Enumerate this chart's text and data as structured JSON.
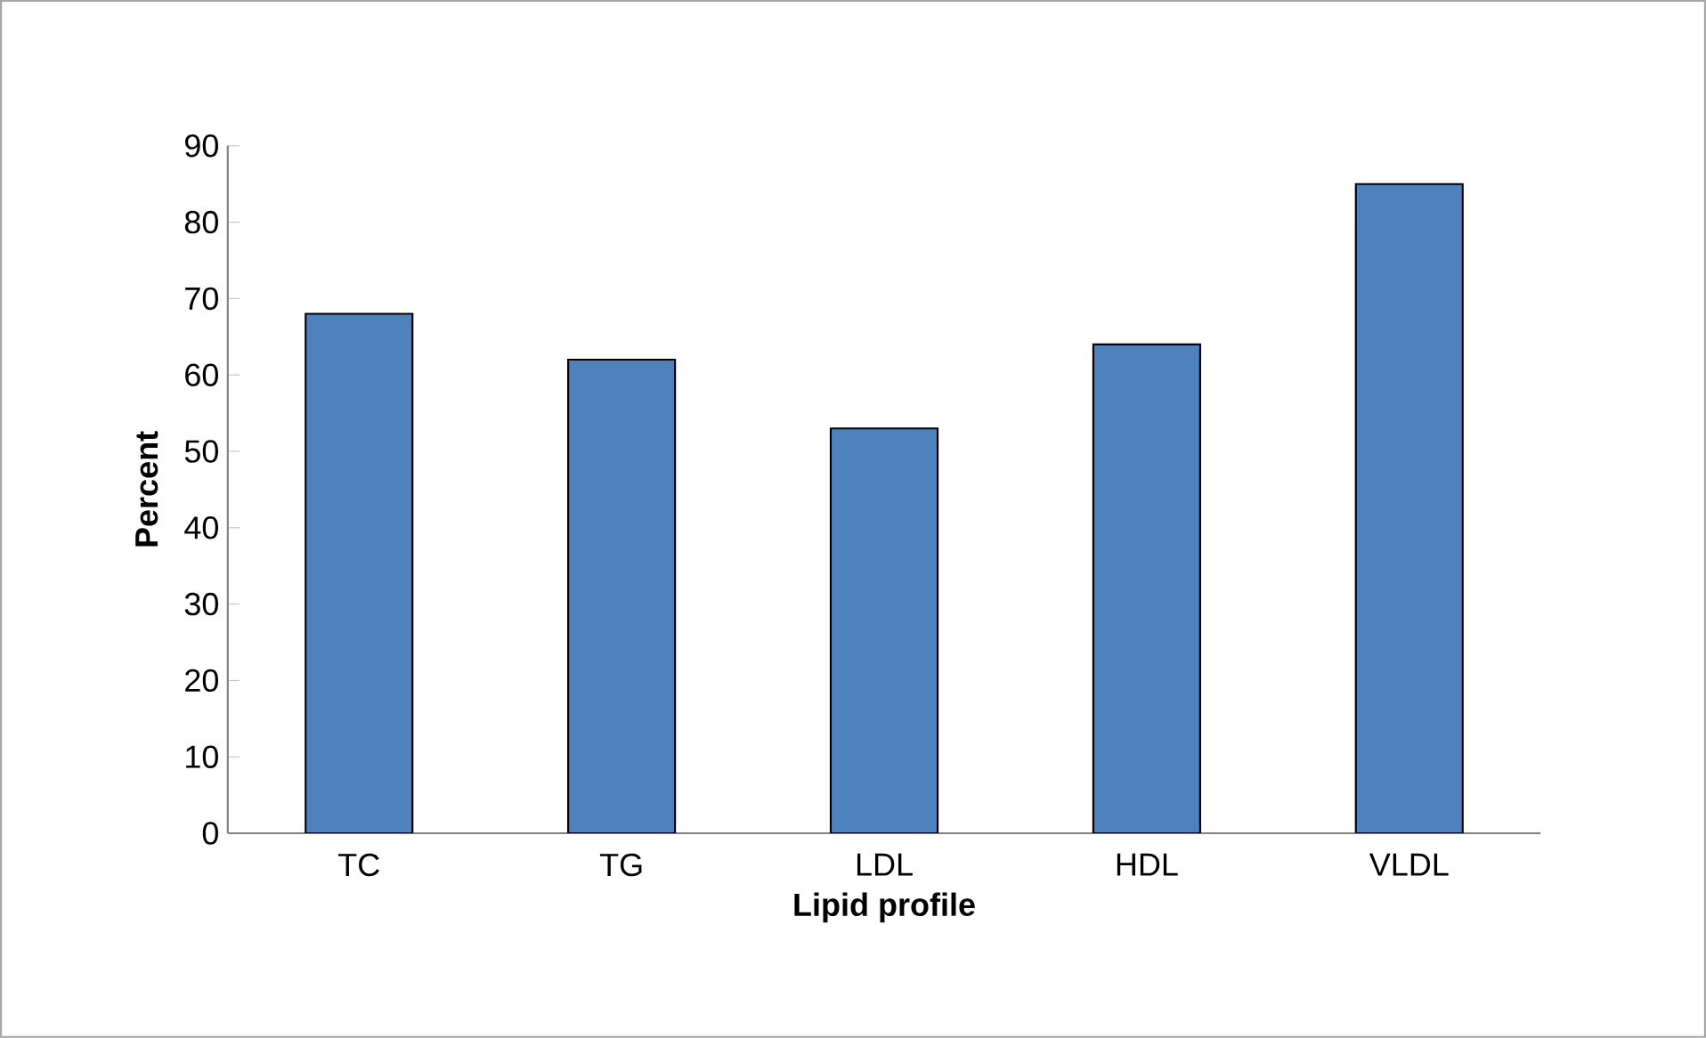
{
  "chart_data": {
    "type": "bar",
    "xlabel": "Lipid profile",
    "ylabel": "Percent",
    "categories": [
      "TC",
      "TG",
      "LDL",
      "HDL",
      "VLDL"
    ],
    "values": [
      68,
      62,
      53,
      64,
      85
    ],
    "color": "#4f81bd",
    "ylim": [
      0,
      90
    ],
    "yticks": [
      0,
      10,
      20,
      30,
      40,
      50,
      60,
      70,
      80,
      90
    ],
    "grid": false
  }
}
